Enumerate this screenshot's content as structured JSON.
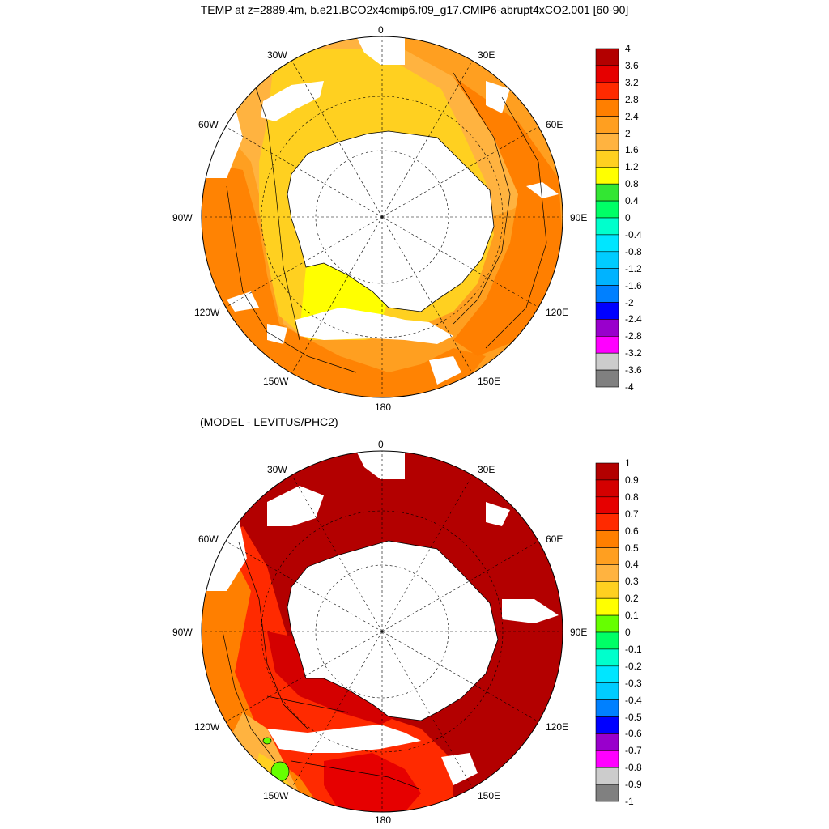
{
  "title": "TEMP at z=2889.4m, b.e21.BCO2x4cmip6.f09_g17.CMIP6-abrupt4xCO2.001 [60-90]",
  "subtitle": "(MODEL - LEVITUS/PHC2)",
  "longitude_labels": [
    "0",
    "30E",
    "60E",
    "90E",
    "120E",
    "150E",
    "180",
    "150W",
    "120W",
    "90W",
    "60W",
    "30W"
  ],
  "colors": {
    "land": "#ffffff",
    "coast": "#000000",
    "grid": "#000000"
  },
  "top_colorbar": {
    "labels": [
      "4",
      "3.6",
      "3.2",
      "2.8",
      "2.4",
      "2",
      "1.6",
      "1.2",
      "0.8",
      "0.4",
      "0",
      "-0.4",
      "-0.8",
      "-1.2",
      "-1.6",
      "-2",
      "-2.4",
      "-2.8",
      "-3.2",
      "-3.6",
      "-4"
    ],
    "colors": [
      "#b30000",
      "#e60000",
      "#ff2a00",
      "#ff7f00",
      "#ff9f20",
      "#ffb340",
      "#ffd020",
      "#ffff00",
      "#33e633",
      "#00ff66",
      "#00ffcc",
      "#00e6ff",
      "#00ccff",
      "#00b3ff",
      "#0080ff",
      "#0000ff",
      "#9900cc",
      "#ff00ff",
      "#cccccc",
      "#808080"
    ]
  },
  "bottom_colorbar": {
    "labels": [
      "1",
      "0.9",
      "0.8",
      "0.7",
      "0.6",
      "0.5",
      "0.4",
      "0.3",
      "0.2",
      "0.1",
      "0",
      "-0.1",
      "-0.2",
      "-0.3",
      "-0.4",
      "-0.5",
      "-0.6",
      "-0.7",
      "-0.8",
      "-0.9",
      "-1"
    ],
    "colors": [
      "#b30000",
      "#d40000",
      "#e60000",
      "#ff2a00",
      "#ff7f00",
      "#ff9f20",
      "#ffb340",
      "#ffd020",
      "#ffff00",
      "#66ff00",
      "#00ff66",
      "#00ffcc",
      "#00e6ff",
      "#00ccff",
      "#0080ff",
      "#0000ff",
      "#9900cc",
      "#ff00ff",
      "#cccccc",
      "#808080"
    ]
  }
}
